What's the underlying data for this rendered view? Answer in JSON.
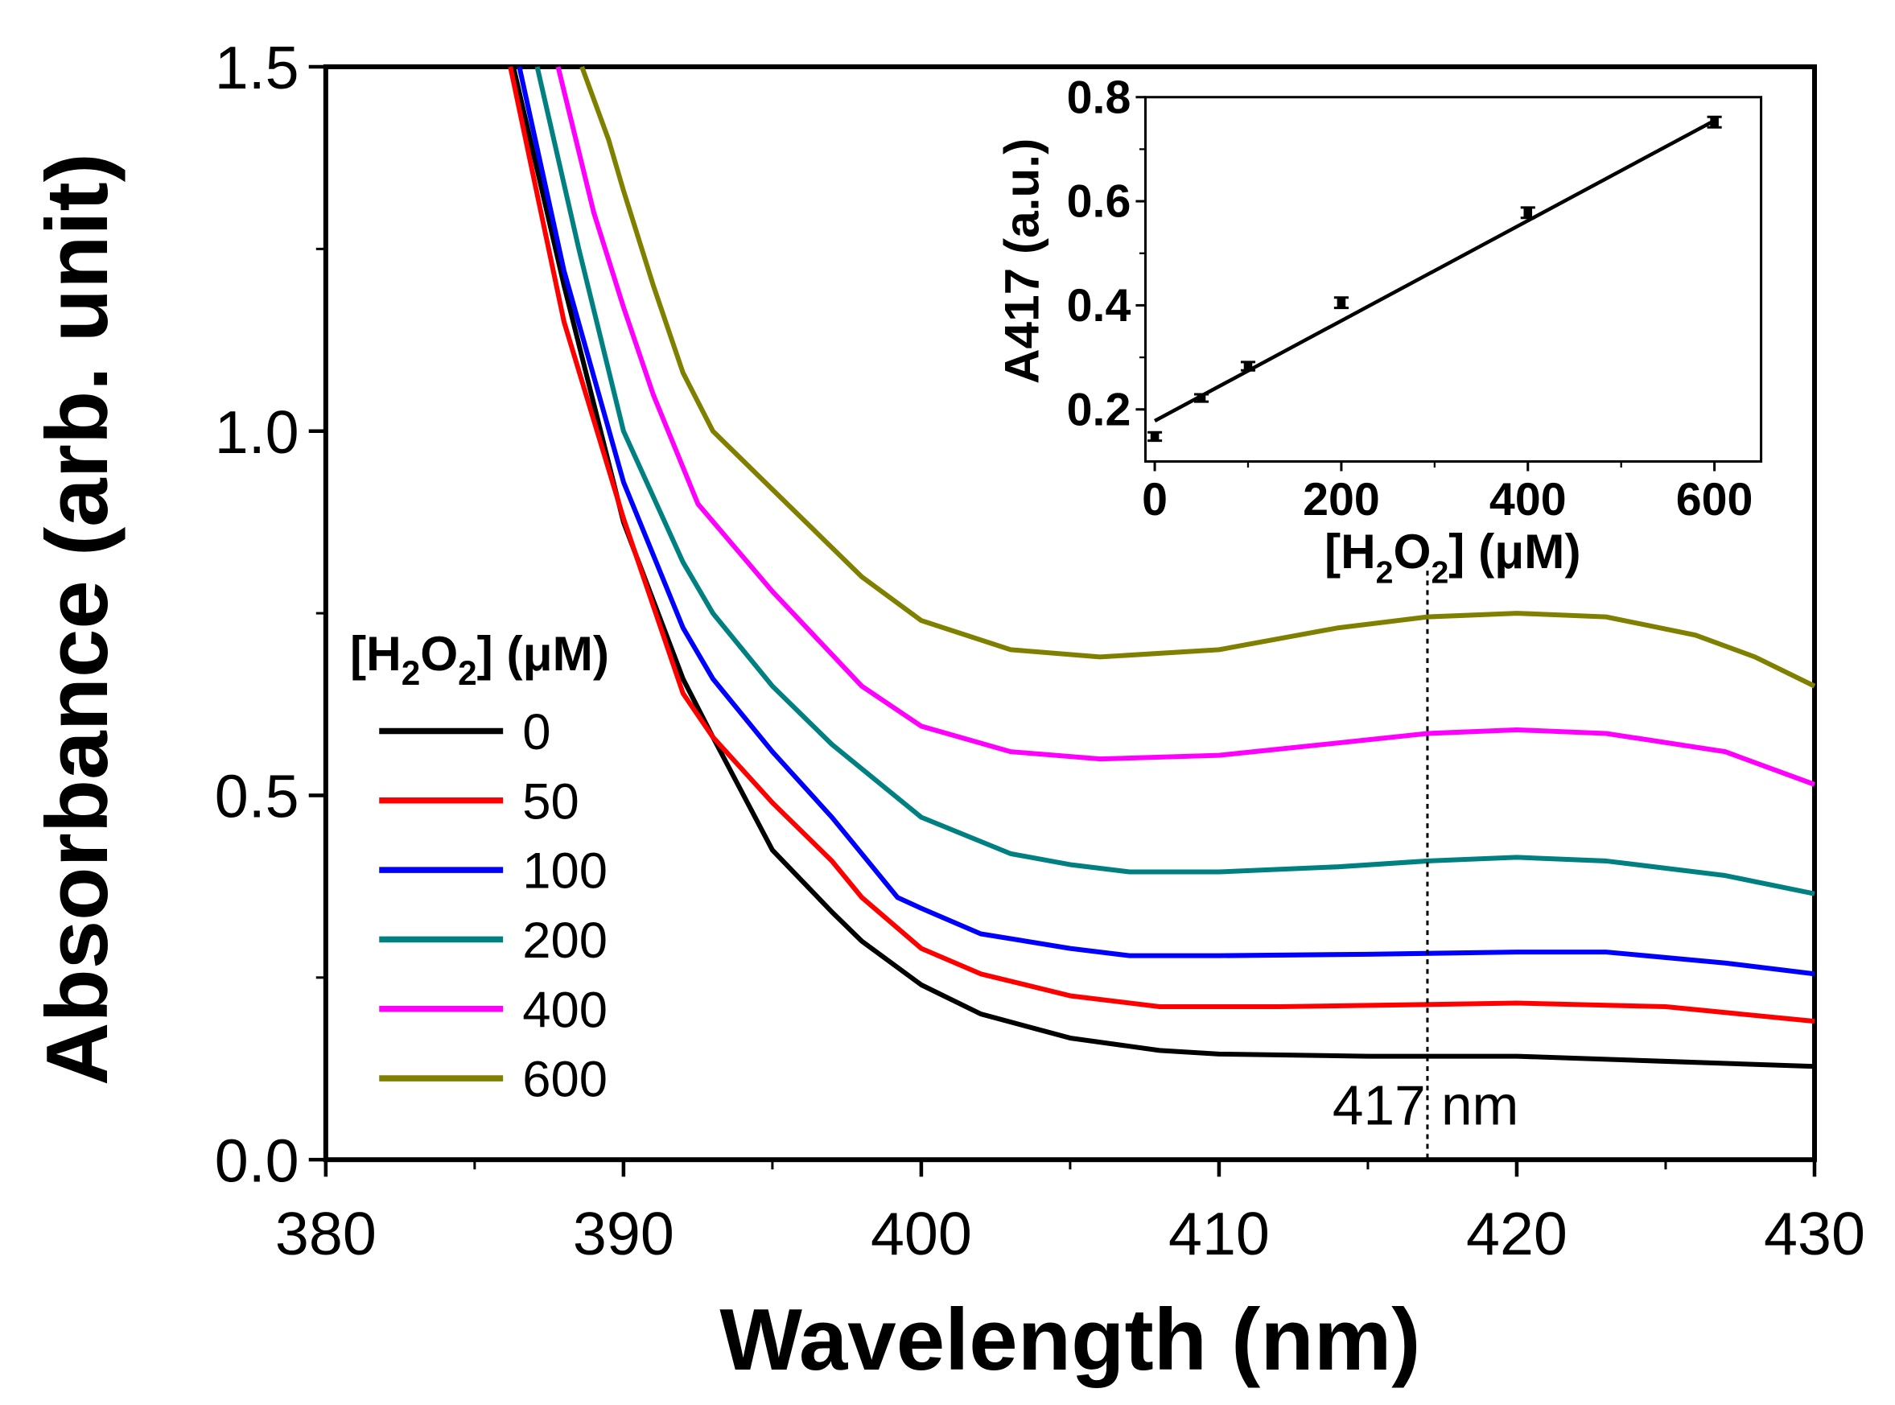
{
  "chart_data": [
    {
      "type": "line",
      "xlabel": "Wavelength (nm)",
      "ylabel": "Absorbance (arb. unit)",
      "xlim": [
        380,
        430
      ],
      "ylim": [
        0,
        1.5
      ],
      "xticks": [
        "380",
        "390",
        "400",
        "410",
        "420",
        "430"
      ],
      "yticks": [
        "0.0",
        "0.5",
        "1.0",
        "1.5"
      ],
      "legend_title": "[H2O2] (μM)",
      "legend_position": "middle-left",
      "annotation": {
        "text": "417  nm",
        "x": 417
      },
      "series": [
        {
          "name": "0",
          "color": "#000000",
          "x": [
            386.3,
            388,
            390,
            392,
            393,
            395,
            397,
            398,
            400,
            402,
            405,
            408,
            410,
            415,
            420,
            425,
            430
          ],
          "y": [
            1.5,
            1.2,
            0.875,
            0.66,
            0.58,
            0.425,
            0.34,
            0.3,
            0.24,
            0.2,
            0.167,
            0.15,
            0.145,
            0.142,
            0.142,
            0.135,
            0.128
          ]
        },
        {
          "name": "50",
          "color": "#ff0000",
          "x": [
            386.2,
            388,
            390,
            391,
            392,
            393,
            395,
            397,
            398,
            400,
            402,
            405,
            408,
            412,
            417,
            420,
            425,
            430
          ],
          "y": [
            1.5,
            1.15,
            0.88,
            0.76,
            0.64,
            0.58,
            0.49,
            0.41,
            0.36,
            0.29,
            0.255,
            0.225,
            0.21,
            0.21,
            0.213,
            0.215,
            0.21,
            0.19
          ]
        },
        {
          "name": "100",
          "color": "#0000ff",
          "x": [
            386.5,
            388,
            390,
            392,
            393,
            395,
            397,
            398,
            399.2,
            400,
            402,
            405,
            407,
            410,
            415,
            420,
            423,
            427,
            430
          ],
          "y": [
            1.5,
            1.22,
            0.93,
            0.73,
            0.66,
            0.56,
            0.47,
            0.42,
            0.36,
            0.345,
            0.31,
            0.29,
            0.28,
            0.28,
            0.282,
            0.285,
            0.285,
            0.27,
            0.255
          ]
        },
        {
          "name": "200",
          "color": "#008080",
          "x": [
            387.1,
            388.5,
            390,
            392,
            393,
            395,
            397,
            400,
            403,
            405,
            407,
            410,
            414,
            417,
            420,
            423,
            427,
            430
          ],
          "y": [
            1.5,
            1.25,
            1.0,
            0.82,
            0.75,
            0.65,
            0.57,
            0.47,
            0.42,
            0.405,
            0.395,
            0.395,
            0.402,
            0.41,
            0.415,
            0.41,
            0.39,
            0.365
          ]
        },
        {
          "name": "400",
          "color": "#ff00ff",
          "x": [
            387.8,
            389,
            390,
            391,
            392.5,
            395,
            398,
            400,
            403,
            406,
            410,
            414,
            417,
            420,
            423,
            427,
            430
          ],
          "y": [
            1.5,
            1.3,
            1.17,
            1.05,
            0.9,
            0.78,
            0.65,
            0.595,
            0.56,
            0.55,
            0.555,
            0.572,
            0.585,
            0.59,
            0.585,
            0.56,
            0.515
          ]
        },
        {
          "name": "600",
          "color": "#808000",
          "x": [
            388.6,
            389.5,
            390,
            391,
            392,
            393,
            395,
            398,
            400,
            403,
            406,
            410,
            414,
            417,
            420,
            423,
            426,
            428,
            430
          ],
          "y": [
            1.5,
            1.4,
            1.33,
            1.2,
            1.08,
            1.0,
            0.92,
            0.8,
            0.74,
            0.7,
            0.69,
            0.7,
            0.73,
            0.745,
            0.75,
            0.745,
            0.72,
            0.69,
            0.65
          ]
        }
      ]
    },
    {
      "type": "scatter",
      "inset": true,
      "xlabel": "[H2O2] (μM)",
      "ylabel": "A417 (a.u.)",
      "xlim": [
        -10,
        650
      ],
      "ylim": [
        0.1,
        0.8
      ],
      "xticks": [
        "0",
        "200",
        "400",
        "600"
      ],
      "yticks": [
        "0.2",
        "0.4",
        "0.6",
        "0.8"
      ],
      "points": {
        "x": [
          0,
          50,
          100,
          200,
          400,
          600
        ],
        "y": [
          0.148,
          0.222,
          0.283,
          0.405,
          0.578,
          0.752
        ],
        "err": [
          0.008,
          0.007,
          0.008,
          0.01,
          0.01,
          0.01
        ]
      },
      "fit": {
        "x": [
          0,
          600
        ],
        "y": [
          0.178,
          0.755
        ]
      }
    }
  ]
}
